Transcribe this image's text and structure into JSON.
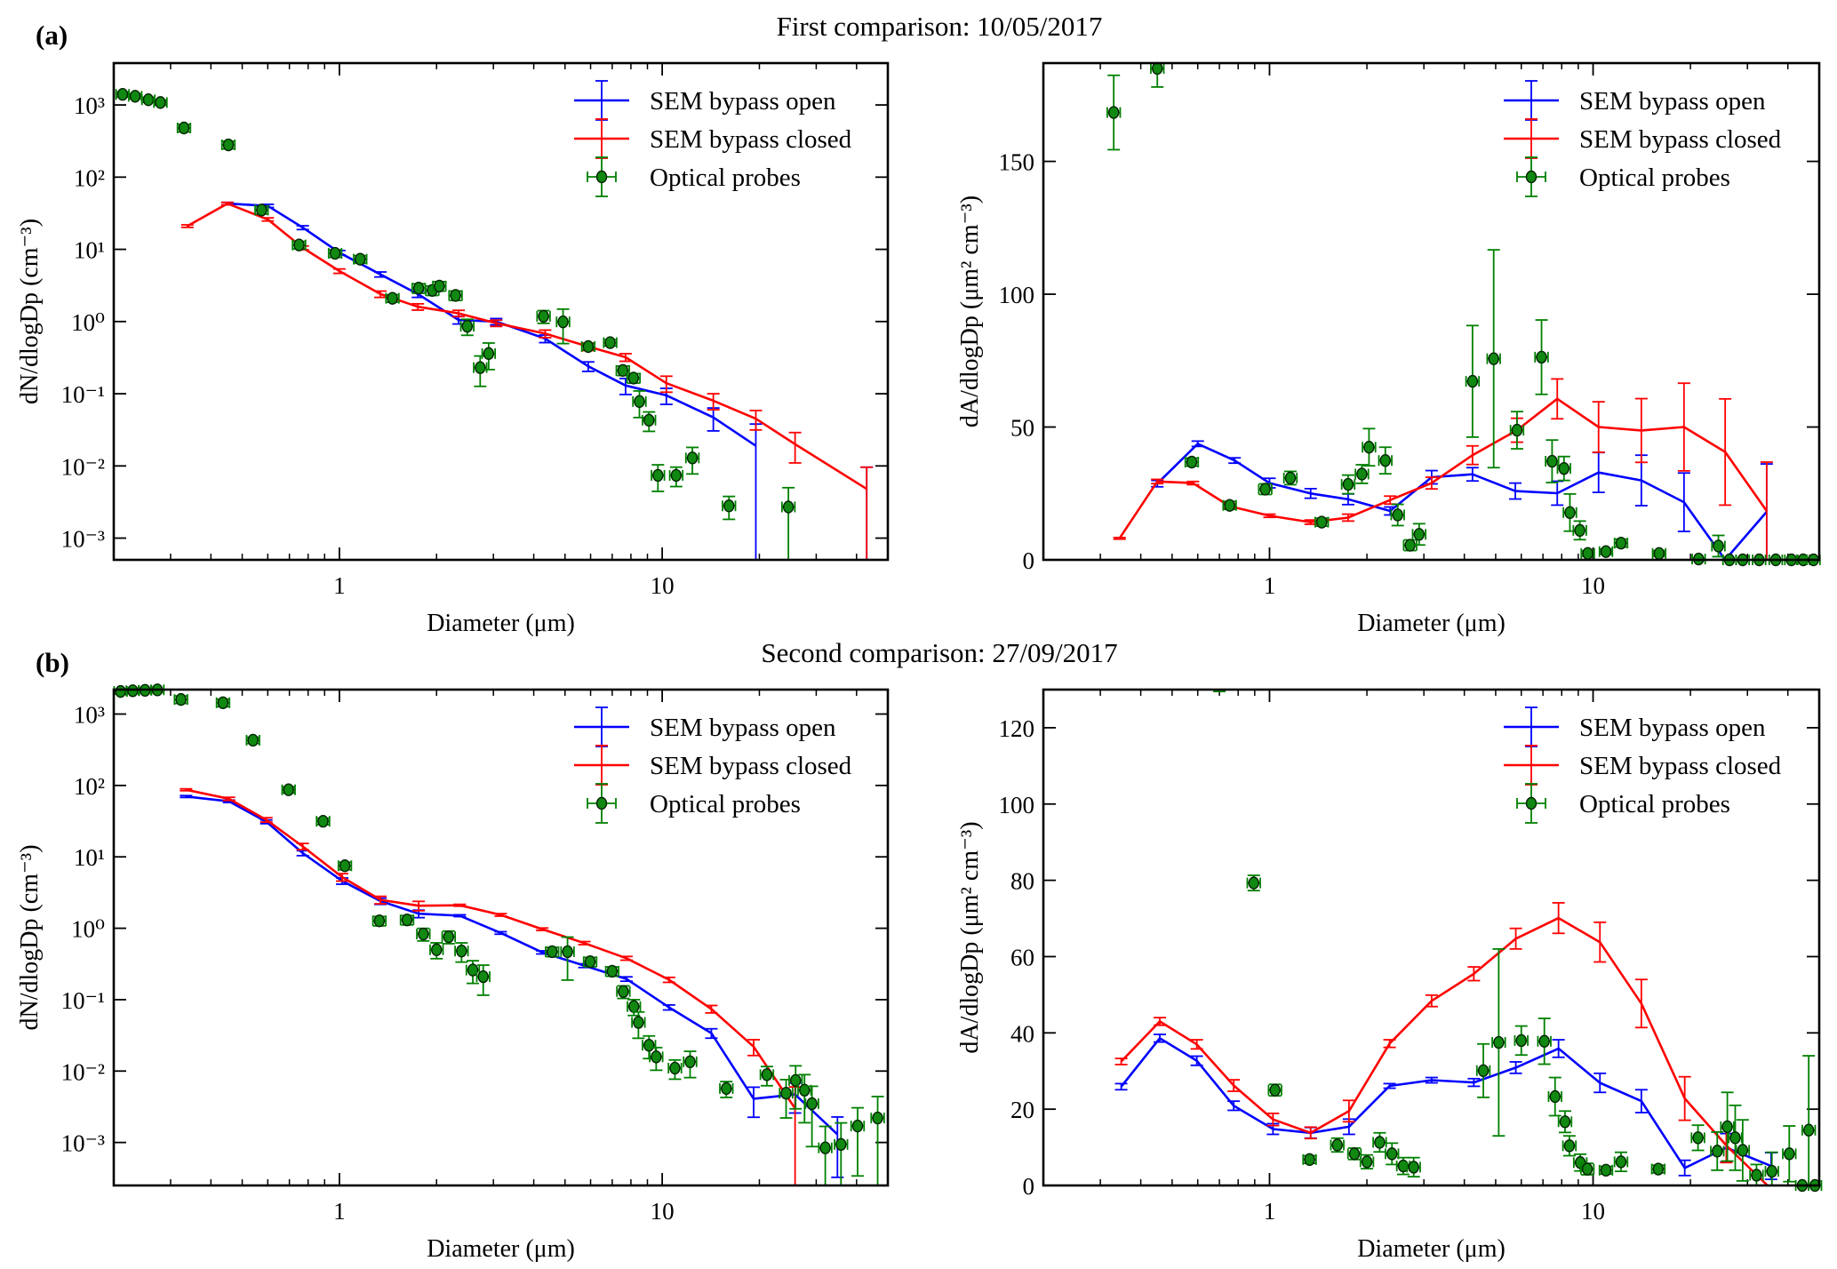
{
  "figure": {
    "panel_a_label": "(a)",
    "panel_a_title": "First comparison:  10/05/2017",
    "panel_b_label": "(b)",
    "panel_b_title": "Second comparison:  27/09/2017"
  },
  "legend": {
    "open": "SEM bypass open",
    "closed": "SEM bypass closed",
    "optical": "Optical probes"
  },
  "colors": {
    "open": "#0000ff",
    "closed": "#ff0000",
    "optical": "#008000",
    "marker_fill": "#118811"
  },
  "chart_data": [
    {
      "panel": "a",
      "type": "line",
      "xscale": "log",
      "yscale": "log",
      "xlim": [
        0.2,
        50
      ],
      "ylim": [
        0.0005,
        3800
      ],
      "xlabel": "Diameter (μm)",
      "ylabel": "dN/dlogDp (cm⁻³)",
      "xticks": [
        1,
        10
      ],
      "xtick_labels": [
        "1",
        "10"
      ],
      "yticks": [
        0.001,
        0.01,
        0.1,
        1,
        10,
        100,
        1000
      ],
      "ytick_labels": [
        "10⁻³",
        "10⁻²",
        "10⁻¹",
        "10⁰",
        "10¹",
        "10²",
        "10³"
      ],
      "legend_position": "top-right",
      "series": [
        {
          "name": "SEM bypass open",
          "key": "open",
          "x": [
            0.45,
            0.6,
            0.77,
            1.0,
            1.34,
            1.75,
            2.34,
            3.06,
            4.34,
            5.9,
            7.7,
            10.3,
            14.4,
            19.5,
            25.8,
            43
          ],
          "y": [
            43,
            40,
            20,
            9,
            4.5,
            2.4,
            1.05,
            1.0,
            0.58,
            0.24,
            0.13,
            0.095,
            0.047,
            0.019,
            null,
            0.0048
          ],
          "yerr_rel": [
            0.04,
            0.05,
            0.06,
            0.07,
            0.08,
            0.1,
            0.12,
            0.1,
            0.12,
            0.15,
            0.25,
            0.25,
            0.35,
            1.0,
            0,
            1.0
          ]
        },
        {
          "name": "SEM bypass closed",
          "key": "closed",
          "x": [
            0.338,
            0.45,
            0.6,
            0.77,
            1.0,
            1.34,
            1.75,
            2.34,
            3.06,
            4.34,
            5.9,
            7.7,
            10.3,
            14.4,
            19.5,
            25.8,
            43
          ],
          "y": [
            21,
            43,
            26,
            10.5,
            5,
            2.4,
            1.6,
            1.3,
            0.95,
            0.68,
            0.45,
            0.32,
            0.14,
            0.08,
            0.045,
            0.02,
            0.0048
          ],
          "yerr_rel": [
            0.04,
            0.04,
            0.05,
            0.06,
            0.07,
            0.1,
            0.1,
            0.1,
            0.1,
            0.12,
            0.12,
            0.12,
            0.25,
            0.25,
            0.3,
            0.45,
            1.0
          ]
        }
      ],
      "optical": {
        "x": [
          0.213,
          0.233,
          0.256,
          0.279,
          0.33,
          0.453,
          0.574,
          0.75,
          0.97,
          1.16,
          1.46,
          1.76,
          1.94,
          2.04,
          2.29,
          2.49,
          2.73,
          2.9,
          4.29,
          4.93,
          5.9,
          6.9,
          7.55,
          8.15,
          8.5,
          9.1,
          9.7,
          11.05,
          12.4,
          16.1,
          24.6
        ],
        "y": [
          1400,
          1320,
          1180,
          1080,
          480,
          280,
          35,
          11.5,
          8.8,
          7.3,
          2.1,
          2.9,
          2.7,
          3.1,
          2.3,
          0.86,
          0.23,
          0.36,
          1.18,
          0.99,
          0.45,
          0.51,
          0.21,
          0.165,
          0.078,
          0.043,
          0.0074,
          0.0074,
          0.0129,
          0.0028,
          0.0027
        ],
        "yerr_rel": [
          0.08,
          0.08,
          0.08,
          0.08,
          0.12,
          0.12,
          0.12,
          0.12,
          0.12,
          0.12,
          0.12,
          0.15,
          0.15,
          0.15,
          0.15,
          0.25,
          0.45,
          0.4,
          0.2,
          0.5,
          0.1,
          0.1,
          0.15,
          0.15,
          0.4,
          0.3,
          0.4,
          0.3,
          0.4,
          0.35,
          0.85
        ],
        "xerr_dex": 0.02
      }
    },
    {
      "panel": "a",
      "type": "line",
      "xscale": "log",
      "yscale": "linear",
      "xlim": [
        0.2,
        50
      ],
      "ylim": [
        0,
        187
      ],
      "xlabel": "Diameter (μm)",
      "ylabel": "dA/dlogDp (μm² cm⁻³)",
      "xticks": [
        1,
        10
      ],
      "xtick_labels": [
        "1",
        "10"
      ],
      "yticks": [
        0,
        50,
        100,
        150
      ],
      "ytick_labels": [
        "0",
        "50",
        "100",
        "150"
      ],
      "legend_position": "top-right",
      "series": [
        {
          "name": "SEM bypass open",
          "key": "open",
          "x": [
            0.45,
            0.6,
            0.78,
            1.0,
            1.34,
            1.75,
            2.36,
            3.17,
            4.24,
            5.75,
            7.75,
            10.4,
            14.1,
            19.1,
            25.6,
            34.4
          ],
          "y": [
            28.7,
            43.7,
            37.4,
            28.9,
            25,
            22.8,
            18.4,
            31.1,
            32.2,
            25.9,
            25.1,
            32.9,
            29.9,
            21.7,
            0,
            18.1
          ],
          "yerr": [
            1.2,
            1,
            1,
            1.8,
            1.8,
            2,
            1.5,
            2.5,
            2.5,
            3,
            4.5,
            7.5,
            9.5,
            11,
            0,
            18
          ]
        },
        {
          "name": "SEM bypass closed",
          "key": "closed",
          "x": [
            0.344,
            0.45,
            0.58,
            0.753,
            1.0,
            1.34,
            1.75,
            2.36,
            3.17,
            4.24,
            5.82,
            7.75,
            10.4,
            14.1,
            19.1,
            25.6,
            34.4
          ],
          "y": [
            8.1,
            29.5,
            28.9,
            20.2,
            16.6,
            14.2,
            15.9,
            22.5,
            28.9,
            39.4,
            48.8,
            60.6,
            50,
            48.7,
            50,
            40.6,
            18.4
          ],
          "yerr": [
            0.3,
            0.8,
            0.6,
            0.8,
            0.6,
            0.8,
            1.3,
            1.5,
            2.2,
            3.5,
            4.5,
            7.5,
            9.5,
            12,
            16.5,
            20,
            18.4
          ]
        }
      ],
      "optical": {
        "x": [
          0.33,
          0.45,
          0.575,
          0.753,
          0.97,
          1.16,
          1.45,
          1.75,
          1.93,
          2.03,
          2.28,
          2.49,
          2.72,
          2.9,
          4.24,
          4.93,
          5.82,
          6.93,
          7.47,
          8.13,
          8.48,
          9.1,
          9.63,
          10.96,
          12.2,
          16.0,
          21.2,
          24.4,
          26.4,
          29,
          32.6,
          36.7,
          41,
          44.6,
          48
        ],
        "y": [
          168.4,
          185,
          36.8,
          20.5,
          26.6,
          30.8,
          14.2,
          28.4,
          32.3,
          42.4,
          37.4,
          16.9,
          5.5,
          9.6,
          67.2,
          75.7,
          48.8,
          76.3,
          37.1,
          34.4,
          17.8,
          11.1,
          2.4,
          3.1,
          6.3,
          2.4,
          0.3,
          5.2,
          0,
          0,
          0,
          0,
          0,
          0,
          0
        ],
        "yerr": [
          14,
          7,
          1.5,
          1.5,
          2,
          2.5,
          1.5,
          3.5,
          3.5,
          7,
          5,
          4,
          2,
          4,
          21,
          41,
          7,
          14,
          8,
          4.5,
          7,
          3.5,
          1,
          1,
          1.5,
          1,
          0.3,
          4,
          0,
          0,
          0,
          0,
          0,
          0,
          0
        ],
        "xerr_dex": 0.02
      }
    },
    {
      "panel": "b",
      "type": "line",
      "xscale": "log",
      "yscale": "log",
      "xlim": [
        0.2,
        50
      ],
      "ylim": [
        0.00025,
        2200
      ],
      "xlabel": "Diameter (μm)",
      "ylabel": "dN/dlogDp (cm⁻³)",
      "xticks": [
        1,
        10
      ],
      "xtick_labels": [
        "1",
        "10"
      ],
      "yticks": [
        0.001,
        0.01,
        0.1,
        1,
        10,
        100,
        1000
      ],
      "ytick_labels": [
        "10⁻³",
        "10⁻²",
        "10⁻¹",
        "10⁰",
        "10¹",
        "10²",
        "10³"
      ],
      "legend_position": "top-right",
      "series": [
        {
          "name": "SEM bypass open",
          "key": "open",
          "x": [
            0.335,
            0.455,
            0.594,
            0.77,
            1.02,
            1.34,
            1.76,
            2.36,
            3.16,
            4.25,
            5.74,
            7.75,
            10.5,
            14.2,
            19.2,
            25.8,
            34.9
          ],
          "y": [
            70,
            60,
            31,
            11.3,
            4.6,
            2.4,
            1.6,
            1.5,
            0.86,
            0.46,
            0.3,
            0.195,
            0.078,
            0.034,
            0.0041,
            0.0047,
            0.0013
          ],
          "yerr_rel": [
            0.03,
            0.04,
            0.06,
            0.08,
            0.1,
            0.1,
            0.12,
            0.03,
            0.04,
            0.05,
            0.06,
            0.07,
            0.08,
            0.15,
            0.45,
            0.45,
            0.75
          ]
        },
        {
          "name": "SEM bypass closed",
          "key": "closed",
          "x": [
            0.335,
            0.455,
            0.594,
            0.77,
            1.02,
            1.34,
            1.76,
            2.36,
            3.16,
            4.25,
            5.74,
            7.75,
            10.5,
            14.2,
            19.2,
            25.8
          ],
          "y": [
            87,
            65,
            33,
            14,
            5.2,
            2.5,
            2.07,
            2.1,
            1.54,
            0.97,
            0.62,
            0.38,
            0.19,
            0.074,
            0.022,
            0.003
          ],
          "yerr_rel": [
            0.03,
            0.05,
            0.07,
            0.1,
            0.12,
            0.12,
            0.15,
            0.03,
            0.04,
            0.04,
            0.05,
            0.06,
            0.08,
            0.12,
            0.25,
            1.0
          ]
        }
      ],
      "optical": {
        "x": [
          0.21,
          0.229,
          0.25,
          0.273,
          0.323,
          0.436,
          0.54,
          0.696,
          0.89,
          1.04,
          1.33,
          1.62,
          1.82,
          2.0,
          2.18,
          2.39,
          2.59,
          2.79,
          4.56,
          5.09,
          5.98,
          7.0,
          7.58,
          8.17,
          8.44,
          9.1,
          9.58,
          10.95,
          12.2,
          15.8,
          21.1,
          24.2,
          25.9,
          27.6,
          29.1,
          32.0,
          35.8,
          40.3,
          46.5
        ],
        "y": [
          2070,
          2120,
          2150,
          2180,
          1600,
          1440,
          430,
          87,
          31.5,
          7.5,
          1.27,
          1.31,
          0.83,
          0.5,
          0.76,
          0.48,
          0.26,
          0.21,
          0.47,
          0.47,
          0.34,
          0.25,
          0.13,
          0.08,
          0.048,
          0.023,
          0.0158,
          0.011,
          0.0135,
          0.0057,
          0.0089,
          0.0049,
          0.0074,
          0.0054,
          0.0035,
          0.00084,
          0.00094,
          0.0017,
          0.0022
        ],
        "yerr_rel": [
          0.08,
          0.08,
          0.08,
          0.08,
          0.12,
          0.12,
          0.1,
          0.1,
          0.1,
          0.12,
          0.15,
          0.15,
          0.2,
          0.25,
          0.2,
          0.3,
          0.35,
          0.45,
          0.15,
          0.6,
          0.15,
          0.15,
          0.2,
          0.25,
          0.4,
          0.35,
          0.35,
          0.3,
          0.4,
          0.25,
          0.3,
          0.55,
          0.6,
          0.65,
          0.75,
          1.0,
          1.0,
          0.8,
          1.0
        ],
        "xerr_dex": 0.02
      }
    },
    {
      "panel": "b",
      "type": "line",
      "xscale": "log",
      "yscale": "linear",
      "xlim": [
        0.2,
        50
      ],
      "ylim": [
        0,
        130
      ],
      "xlabel": "Diameter (μm)",
      "ylabel": "dA/dlogDp (μm² cm⁻³)",
      "xticks": [
        1,
        10
      ],
      "xtick_labels": [
        "1",
        "10"
      ],
      "yticks": [
        0,
        20,
        40,
        60,
        80,
        100,
        120
      ],
      "ytick_labels": [
        "0",
        "20",
        "40",
        "60",
        "80",
        "100",
        "120"
      ],
      "legend_position": "top-right",
      "series": [
        {
          "name": "SEM bypass open",
          "key": "open",
          "x": [
            0.348,
            0.458,
            0.596,
            0.775,
            1.025,
            1.34,
            1.76,
            2.35,
            3.17,
            4.28,
            5.77,
            7.82,
            10.5,
            14.1,
            19.2,
            25.8,
            35.5
          ],
          "y": [
            25.9,
            38.6,
            32.7,
            20.9,
            14.8,
            13.8,
            15.4,
            26.1,
            27.6,
            27,
            30.9,
            35.9,
            26.9,
            22.1,
            4.6,
            9.9,
            5.1
          ],
          "yerr": [
            0.8,
            1,
            1.2,
            1.2,
            1.4,
            1.4,
            2,
            0.6,
            0.7,
            1,
            1.5,
            2.3,
            2.5,
            3,
            2,
            3.7,
            3.5
          ]
        },
        {
          "name": "SEM bypass closed",
          "key": "closed",
          "x": [
            0.348,
            0.458,
            0.596,
            0.775,
            1.025,
            1.34,
            1.76,
            2.35,
            3.17,
            4.28,
            5.77,
            7.82,
            10.5,
            14.1,
            19.2,
            25.8,
            34.6
          ],
          "y": [
            32.5,
            43,
            37,
            26.2,
            17.3,
            13.8,
            19.5,
            37.2,
            48.4,
            55.5,
            64.7,
            70.1,
            63.8,
            47.7,
            22.8,
            10.5,
            0
          ],
          "yerr": [
            0.8,
            1,
            1.2,
            1.5,
            1.6,
            1.5,
            2.8,
            1,
            1.5,
            1.8,
            2.7,
            4,
            5.2,
            6.3,
            5.7,
            4.5,
            0
          ]
        }
      ],
      "optical": {
        "x": [
          0.7,
          0.894,
          1.04,
          1.33,
          1.62,
          1.83,
          2.0,
          2.19,
          2.39,
          2.59,
          2.79,
          4.58,
          5.11,
          6.0,
          7.07,
          7.63,
          8.19,
          8.45,
          9.13,
          9.6,
          10.96,
          12.2,
          15.9,
          21.1,
          24.2,
          26.0,
          27.5,
          29.0,
          32.0,
          35.7,
          40.4,
          44.3,
          46.4,
          48.5
        ],
        "y": [
          131,
          79.3,
          25,
          6.8,
          10.6,
          8.3,
          6.2,
          11.3,
          8.3,
          5.1,
          4.8,
          30.1,
          37.5,
          38,
          37.8,
          23.3,
          16.7,
          10.4,
          6.0,
          4.3,
          4.0,
          6.2,
          4.3,
          12.5,
          9.0,
          15.4,
          12.5,
          9.2,
          2.7,
          3.7,
          8.3,
          0,
          14.5,
          0
        ],
        "yerr": [
          1.5,
          2,
          1.5,
          1,
          1.8,
          1.5,
          1.8,
          2.5,
          2.8,
          2.2,
          2.5,
          7,
          24.5,
          3.8,
          6,
          5,
          2.8,
          2.6,
          2.2,
          1.5,
          1,
          2.5,
          1,
          3.3,
          5,
          9,
          8.5,
          8,
          2.8,
          5,
          7.3,
          0,
          19.5,
          0
        ],
        "xerr_dex": 0.02
      }
    }
  ]
}
